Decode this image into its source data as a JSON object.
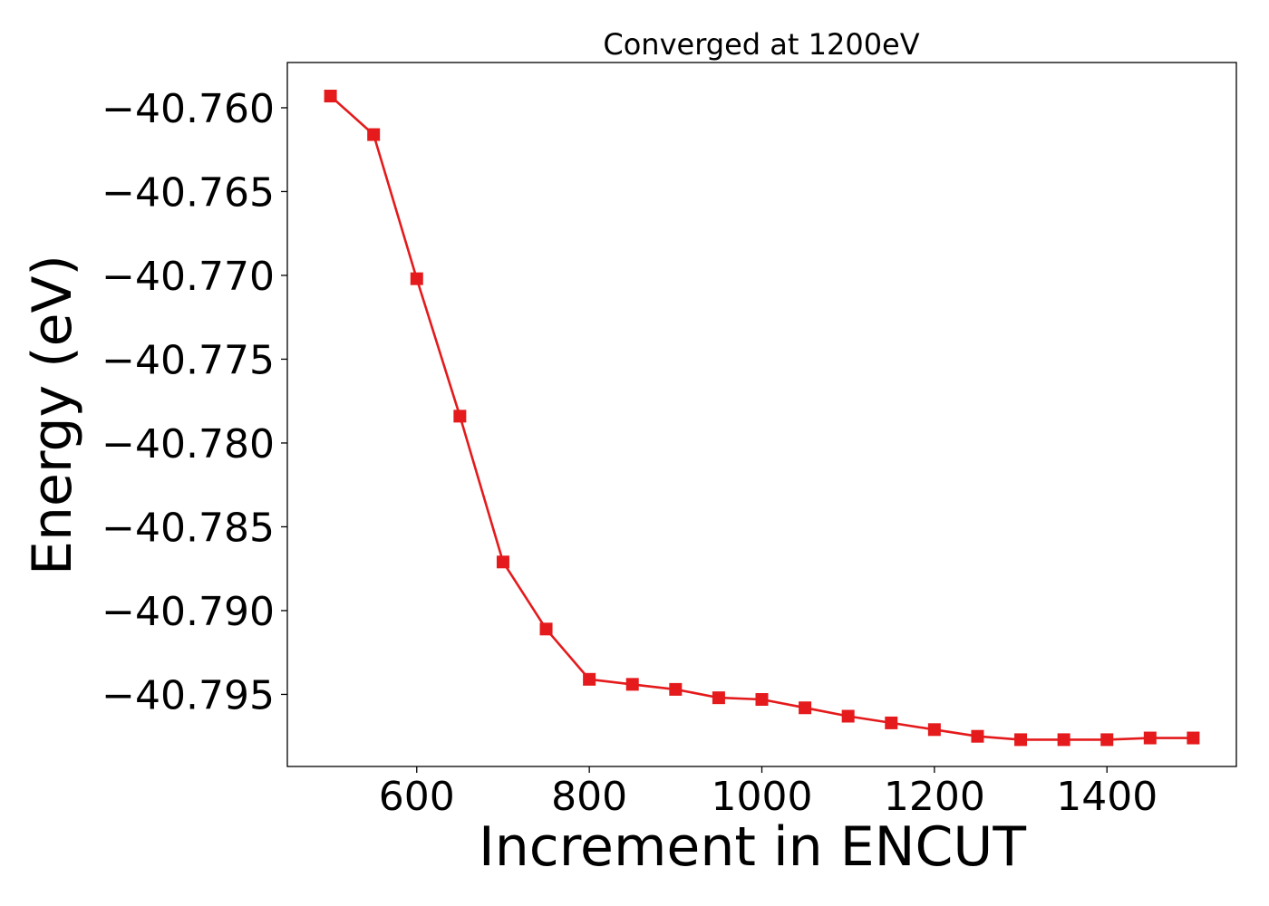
{
  "chart_data": {
    "type": "line",
    "title": "Converged at 1200eV",
    "xlabel": "Increment in ENCUT",
    "ylabel": "Energy (eV)",
    "xlim": [
      450,
      1550
    ],
    "ylim": [
      -40.7993,
      -40.7573
    ],
    "xticks": [
      600,
      800,
      1000,
      1200,
      1400
    ],
    "xtick_labels": [
      "600",
      "800",
      "1000",
      "1200",
      "1400"
    ],
    "yticks": [
      -40.76,
      -40.765,
      -40.77,
      -40.775,
      -40.78,
      -40.785,
      -40.79,
      -40.795
    ],
    "ytick_labels": [
      "−40.760",
      "−40.765",
      "−40.770",
      "−40.775",
      "−40.780",
      "−40.785",
      "−40.790",
      "−40.795"
    ],
    "grid": false,
    "legend": "none",
    "series": [
      {
        "color": "#e41a1c",
        "marker": "square",
        "x": [
          500,
          550,
          600,
          650,
          700,
          750,
          800,
          850,
          900,
          950,
          1000,
          1050,
          1100,
          1150,
          1200,
          1250,
          1300,
          1350,
          1400,
          1450,
          1500
        ],
        "y": [
          -40.7593,
          -40.7616,
          -40.7702,
          -40.7784,
          -40.7871,
          -40.7911,
          -40.7941,
          -40.7944,
          -40.7947,
          -40.7952,
          -40.7953,
          -40.7958,
          -40.7963,
          -40.7967,
          -40.7971,
          -40.7975,
          -40.7977,
          -40.7977,
          -40.7977,
          -40.7976,
          -40.7976
        ]
      }
    ]
  }
}
